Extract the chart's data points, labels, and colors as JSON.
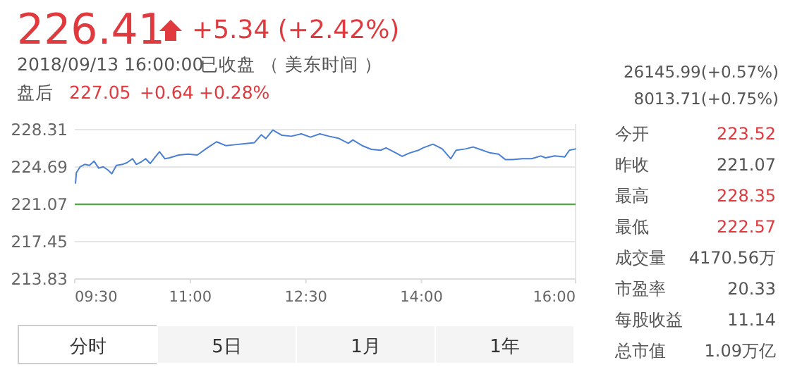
{
  "chart_data": {
    "type": "line",
    "x": [
      9.51,
      9.52,
      9.57,
      9.63,
      9.69,
      9.75,
      9.81,
      9.87,
      9.93,
      9.98,
      10.04,
      10.12,
      10.18,
      10.25,
      10.3,
      10.36,
      10.42,
      10.48,
      10.54,
      10.6,
      10.67,
      10.73,
      10.85,
      10.97,
      11.09,
      11.22,
      11.34,
      11.46,
      11.58,
      11.7,
      11.83,
      11.92,
      11.98,
      12.07,
      12.19,
      12.31,
      12.44,
      12.56,
      12.68,
      12.8,
      12.93,
      13.05,
      13.11,
      13.23,
      13.35,
      13.47,
      13.54,
      13.66,
      13.75,
      13.84,
      13.96,
      14.02,
      14.15,
      14.27,
      14.38,
      14.45,
      14.57,
      14.67,
      14.76,
      14.88,
      15.0,
      15.09,
      15.18,
      15.31,
      15.43,
      15.55,
      15.61,
      15.73,
      15.86,
      15.92,
      16.0
    ],
    "series": [
      {
        "color": "#4a7fd6",
        "values": [
          223.12,
          224.12,
          224.71,
          224.94,
          224.85,
          225.26,
          224.58,
          224.71,
          224.4,
          224.03,
          224.85,
          224.94,
          225.12,
          225.49,
          224.94,
          225.17,
          225.49,
          225.03,
          225.62,
          226.17,
          225.49,
          225.58,
          225.85,
          225.94,
          225.85,
          226.54,
          227.13,
          226.76,
          226.85,
          226.95,
          227.04,
          227.81,
          227.45,
          228.27,
          227.76,
          227.67,
          227.9,
          227.58,
          227.9,
          227.67,
          227.45,
          226.99,
          227.31,
          226.76,
          226.4,
          226.31,
          226.54,
          226.08,
          225.72,
          226.03,
          226.31,
          226.54,
          226.9,
          226.44,
          225.49,
          226.31,
          226.44,
          226.63,
          226.4,
          226.08,
          225.94,
          225.4,
          225.4,
          225.49,
          225.49,
          225.76,
          225.58,
          225.76,
          225.67,
          226.31,
          226.44
        ]
      }
    ],
    "xlim": [
      9.5,
      16
    ],
    "ylim": [
      213.83,
      228.31
    ],
    "xticks": [
      {
        "value": 9.5,
        "label": "09:30"
      },
      {
        "value": 11,
        "label": "11:00"
      },
      {
        "value": 12.5,
        "label": "12:30"
      },
      {
        "value": 14,
        "label": "14:00"
      },
      {
        "value": 16,
        "label": "16:00"
      }
    ],
    "yticks": [
      213.83,
      217.45,
      221.07,
      224.69,
      228.31
    ],
    "grid": "y",
    "ref_lines": [
      {
        "axis": "y",
        "value": 221.07,
        "color": "#5aa84e"
      }
    ],
    "annotations": [
      "226.41",
      "+5.34 (+2.42%)",
      "2018/09/13 16:00:00",
      "已收盘 （ 美东时间 ）",
      "盘后",
      "227.05",
      "+0.64",
      "+0.28%",
      "26145.99(+0.57%)",
      "8013.71(+0.75%)",
      "今开",
      "223.52",
      "昨收",
      "221.07",
      "最高",
      "228.35",
      "最低",
      "222.57",
      "成交量",
      "4170.56万",
      "市盈率",
      "20.33",
      "每股收益",
      "11.14",
      "总市值",
      "1.09万亿",
      "分时",
      "5日",
      "1月",
      "1年"
    ]
  }
}
